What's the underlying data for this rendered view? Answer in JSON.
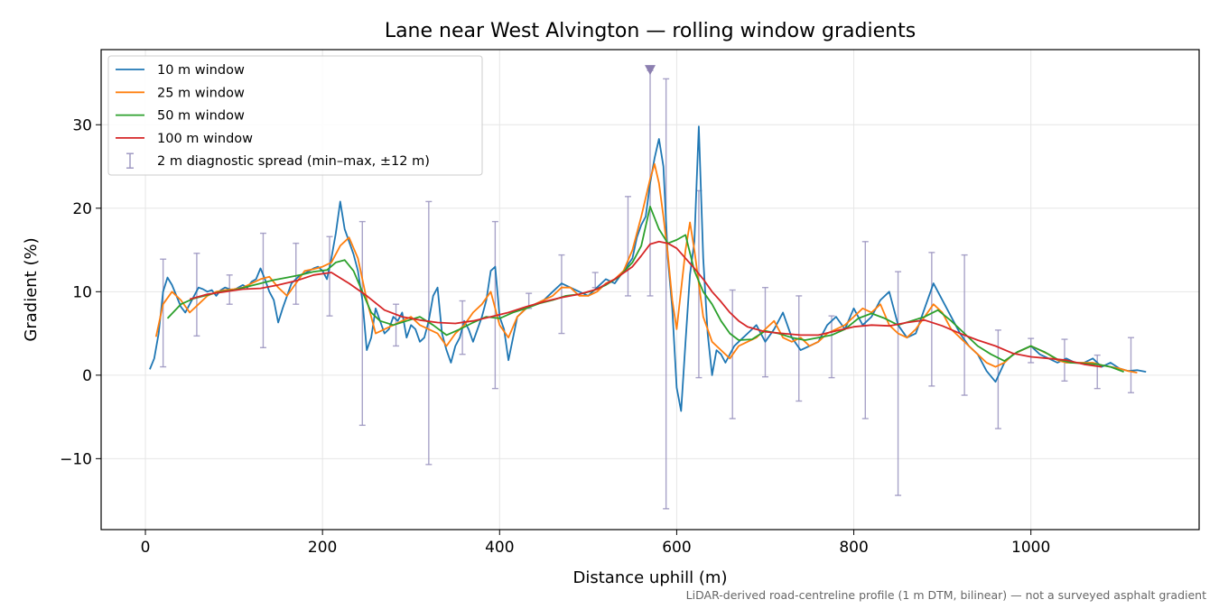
{
  "chart_data": {
    "type": "line",
    "title": "Lane near West Alvington — rolling window gradients",
    "xlabel": "Distance uphill (m)",
    "ylabel": "Gradient (%)",
    "xlim": [
      -50,
      1190
    ],
    "ylim": [
      -18.5,
      39
    ],
    "xticks": [
      0,
      200,
      400,
      600,
      800,
      1000
    ],
    "yticks": [
      -10,
      0,
      10,
      20,
      30
    ],
    "xtick_labels": [
      "0",
      "200",
      "400",
      "600",
      "800",
      "1000"
    ],
    "ytick_labels": [
      "−10",
      "0",
      "10",
      "20",
      "30"
    ],
    "grid": true,
    "legend_position": "upper-left",
    "footnote": "LiDAR-derived road-centreline profile (1 m DTM, bilinear) — not a surveyed asphalt gradient",
    "marker": {
      "x": 570,
      "y": 36.5,
      "shape": "downward-triangle",
      "color": "#8c7fb0"
    },
    "series": [
      {
        "name": "10 m window",
        "color": "#1f77b4",
        "x": [
          5,
          10,
          15,
          20,
          25,
          30,
          35,
          40,
          45,
          50,
          55,
          60,
          65,
          70,
          75,
          80,
          85,
          90,
          95,
          100,
          105,
          110,
          115,
          120,
          125,
          130,
          135,
          140,
          145,
          150,
          155,
          160,
          165,
          170,
          175,
          180,
          185,
          190,
          195,
          200,
          205,
          210,
          215,
          220,
          225,
          230,
          235,
          240,
          245,
          250,
          255,
          260,
          265,
          270,
          275,
          280,
          285,
          290,
          295,
          300,
          305,
          310,
          315,
          320,
          325,
          330,
          335,
          340,
          345,
          350,
          355,
          360,
          365,
          370,
          375,
          380,
          385,
          390,
          395,
          400,
          405,
          410,
          420,
          430,
          440,
          450,
          460,
          470,
          480,
          490,
          500,
          510,
          520,
          530,
          540,
          550,
          555,
          560,
          565,
          570,
          575,
          580,
          585,
          590,
          595,
          600,
          605,
          610,
          615,
          620,
          625,
          630,
          635,
          640,
          645,
          650,
          655,
          660,
          665,
          670,
          680,
          690,
          700,
          710,
          720,
          730,
          740,
          750,
          760,
          770,
          780,
          790,
          800,
          810,
          820,
          830,
          840,
          850,
          860,
          870,
          880,
          890,
          900,
          910,
          920,
          930,
          940,
          950,
          960,
          970,
          980,
          990,
          1000,
          1010,
          1020,
          1030,
          1040,
          1050,
          1060,
          1070,
          1080,
          1090,
          1100,
          1110,
          1120,
          1130
        ],
        "values": [
          0.7,
          2,
          5,
          10,
          11.7,
          10.8,
          9.5,
          8.2,
          7.5,
          8.5,
          9.5,
          10.5,
          10.3,
          10.0,
          10.2,
          9.5,
          10.2,
          10.5,
          10.3,
          10.2,
          10.5,
          10.8,
          10.5,
          11.2,
          11.5,
          12.8,
          11.5,
          10.0,
          9.0,
          6.3,
          8.0,
          9.5,
          11.0,
          11.5,
          12.0,
          12.2,
          12.5,
          12.8,
          13.0,
          12.5,
          11.5,
          14.0,
          17.0,
          20.8,
          17.5,
          16.0,
          14.5,
          12.5,
          9.0,
          3.0,
          4.5,
          8.0,
          6.5,
          5.0,
          5.5,
          7.0,
          6.5,
          7.5,
          4.5,
          6.0,
          5.5,
          4.0,
          4.5,
          6.5,
          9.5,
          10.5,
          5.0,
          3.0,
          1.5,
          3.5,
          4.5,
          6.5,
          5.5,
          4.0,
          5.5,
          7.0,
          9.0,
          12.5,
          13.0,
          7.0,
          5.5,
          1.8,
          7.0,
          8.0,
          8.5,
          9.0,
          10.0,
          11.0,
          10.5,
          10.0,
          9.5,
          10.5,
          11.5,
          11.0,
          12.5,
          14.0,
          16.5,
          18.0,
          19.0,
          23.0,
          26.0,
          28.3,
          25.0,
          14.0,
          8.0,
          -1.5,
          -4.3,
          4.0,
          12.0,
          16.0,
          29.8,
          14.0,
          5.0,
          0.0,
          3.0,
          2.5,
          1.5,
          2.5,
          3.5,
          4.0,
          5.0,
          6.0,
          4.0,
          5.5,
          7.5,
          4.5,
          3.0,
          3.5,
          4.0,
          6.0,
          7.0,
          5.5,
          8.0,
          6.0,
          7.0,
          9.0,
          10.0,
          6.0,
          4.5,
          5.0,
          8.0,
          11.0,
          9.0,
          7.0,
          5.0,
          3.5,
          2.5,
          0.5,
          -0.8,
          1.5,
          2.5,
          3.0,
          3.5,
          2.5,
          2.0,
          1.5,
          2.0,
          1.5,
          1.5,
          2.0,
          1.0,
          1.5,
          0.8,
          0.5,
          0.6,
          0.4
        ]
      },
      {
        "name": "25 m window",
        "color": "#ff7f0e",
        "x": [
          12,
          20,
          30,
          40,
          50,
          60,
          70,
          80,
          90,
          100,
          110,
          120,
          130,
          140,
          150,
          160,
          170,
          180,
          190,
          200,
          210,
          220,
          230,
          240,
          250,
          260,
          270,
          280,
          290,
          300,
          310,
          320,
          330,
          340,
          350,
          360,
          370,
          380,
          390,
          400,
          410,
          420,
          430,
          440,
          450,
          460,
          470,
          480,
          490,
          500,
          510,
          520,
          530,
          540,
          550,
          560,
          570,
          575,
          580,
          585,
          590,
          595,
          600,
          610,
          615,
          620,
          630,
          640,
          650,
          660,
          670,
          680,
          690,
          700,
          710,
          720,
          730,
          740,
          750,
          760,
          770,
          780,
          790,
          800,
          810,
          820,
          830,
          840,
          850,
          860,
          870,
          880,
          890,
          900,
          910,
          920,
          930,
          940,
          950,
          960,
          970,
          980,
          990,
          1000,
          1010,
          1020,
          1030,
          1040,
          1050,
          1060,
          1070,
          1080,
          1090,
          1100,
          1110,
          1120
        ],
        "values": [
          4.6,
          8.5,
          10.0,
          9.0,
          7.5,
          8.5,
          9.5,
          10.0,
          10.2,
          10.3,
          10.5,
          11.0,
          11.5,
          11.8,
          10.5,
          9.5,
          11.0,
          12.5,
          12.7,
          13.0,
          13.5,
          15.5,
          16.5,
          14.0,
          9.0,
          5.0,
          5.5,
          6.0,
          6.5,
          7.0,
          6.0,
          5.5,
          5.0,
          3.5,
          5.0,
          6.0,
          7.5,
          8.5,
          10.0,
          6.0,
          4.5,
          7.0,
          8.0,
          8.5,
          9.0,
          9.5,
          10.5,
          10.5,
          9.5,
          9.5,
          10.0,
          11.0,
          11.5,
          12.5,
          15.0,
          19.0,
          23.5,
          25.3,
          23.0,
          19.0,
          14.5,
          9.0,
          5.5,
          15.0,
          18.3,
          15.0,
          7.0,
          4.0,
          3.0,
          2.0,
          3.5,
          4.0,
          4.5,
          5.5,
          6.5,
          4.5,
          4.0,
          4.5,
          3.5,
          4.0,
          5.0,
          5.5,
          6.0,
          7.0,
          8.0,
          7.5,
          8.5,
          6.0,
          5.0,
          4.5,
          5.5,
          7.0,
          8.5,
          7.5,
          5.5,
          4.5,
          3.5,
          2.5,
          1.5,
          1.0,
          1.5,
          2.5,
          3.0,
          3.5,
          3.0,
          2.5,
          1.8,
          1.5,
          1.5,
          1.5,
          1.5,
          1.2,
          1.0,
          0.8,
          0.5,
          0.3
        ]
      },
      {
        "name": "50 m window",
        "color": "#2ca02c",
        "x": [
          25,
          40,
          55,
          70,
          85,
          100,
          115,
          130,
          145,
          160,
          175,
          190,
          205,
          215,
          225,
          235,
          245,
          255,
          265,
          280,
          295,
          310,
          325,
          340,
          355,
          370,
          385,
          400,
          415,
          430,
          445,
          460,
          475,
          490,
          505,
          520,
          535,
          550,
          560,
          570,
          580,
          590,
          600,
          610,
          620,
          630,
          640,
          650,
          660,
          670,
          685,
          700,
          715,
          730,
          745,
          760,
          775,
          790,
          805,
          820,
          835,
          850,
          865,
          880,
          895,
          910,
          925,
          940,
          955,
          970,
          985,
          1000,
          1015,
          1030,
          1045,
          1060,
          1075,
          1090,
          1105
        ],
        "values": [
          6.8,
          8.5,
          9.2,
          9.6,
          10.0,
          10.2,
          10.6,
          11.0,
          11.4,
          11.7,
          12.0,
          12.4,
          12.6,
          13.5,
          13.8,
          12.5,
          10.0,
          7.5,
          6.5,
          6.0,
          6.5,
          7.0,
          6.0,
          4.8,
          5.5,
          6.3,
          7.0,
          6.8,
          7.5,
          8.0,
          8.6,
          9.0,
          9.5,
          9.7,
          10.1,
          10.8,
          11.8,
          13.5,
          15.5,
          20.2,
          17.5,
          15.8,
          16.2,
          16.8,
          12.5,
          10.0,
          8.5,
          6.5,
          5.0,
          4.2,
          4.3,
          5.3,
          5.0,
          4.5,
          4.2,
          4.5,
          4.8,
          5.5,
          6.8,
          7.4,
          6.8,
          6.0,
          6.5,
          7.0,
          7.8,
          6.5,
          5.0,
          3.5,
          2.5,
          1.7,
          2.8,
          3.5,
          2.8,
          1.9,
          1.5,
          1.4,
          1.3,
          1.0,
          0.4
        ]
      },
      {
        "name": "100 m window",
        "color": "#d62728",
        "x": [
          50,
          70,
          90,
          110,
          130,
          150,
          170,
          190,
          210,
          230,
          250,
          270,
          290,
          310,
          330,
          350,
          370,
          390,
          410,
          430,
          450,
          470,
          490,
          510,
          530,
          550,
          560,
          570,
          580,
          590,
          600,
          610,
          620,
          630,
          640,
          650,
          660,
          670,
          680,
          700,
          720,
          740,
          760,
          780,
          800,
          820,
          840,
          860,
          880,
          900,
          920,
          940,
          960,
          980,
          1000,
          1020,
          1040,
          1060,
          1080
        ],
        "values": [
          9.1,
          9.7,
          10.0,
          10.3,
          10.4,
          10.8,
          11.3,
          12.0,
          12.3,
          11.0,
          9.5,
          7.8,
          7.0,
          6.6,
          6.3,
          6.2,
          6.5,
          7.0,
          7.5,
          8.2,
          8.8,
          9.3,
          9.7,
          10.3,
          11.5,
          13.0,
          14.3,
          15.7,
          16.0,
          15.8,
          15.2,
          14.0,
          12.8,
          11.5,
          10.0,
          8.8,
          7.5,
          6.5,
          5.8,
          5.2,
          5.0,
          4.8,
          4.8,
          5.3,
          5.8,
          6.0,
          5.9,
          6.3,
          6.6,
          5.9,
          5.0,
          4.2,
          3.5,
          2.6,
          2.2,
          2.0,
          1.8,
          1.3,
          1.0
        ]
      }
    ],
    "errorbars": {
      "name": "2 m diagnostic spread (min–max, ±12 m)",
      "color": "#9a93bf",
      "x": [
        20,
        58,
        95,
        133,
        170,
        208,
        245,
        283,
        320,
        358,
        395,
        433,
        470,
        508,
        545,
        570,
        588,
        625,
        663,
        700,
        738,
        775,
        813,
        850,
        888,
        925,
        963,
        1000,
        1038,
        1075,
        1113
      ],
      "low": [
        1.0,
        4.7,
        8.5,
        3.3,
        8.5,
        7.1,
        -6.0,
        3.5,
        -10.7,
        2.5,
        -1.6,
        8.0,
        5.0,
        10.5,
        9.5,
        9.5,
        -16.0,
        -0.3,
        -5.2,
        -0.2,
        -3.1,
        -0.3,
        -5.2,
        -14.4,
        -1.3,
        -2.4,
        -6.4,
        1.5,
        -0.7,
        -1.6,
        -2.1
      ],
      "high": [
        13.9,
        14.6,
        12.0,
        17.0,
        15.8,
        16.6,
        18.4,
        8.5,
        20.8,
        8.9,
        18.4,
        9.8,
        14.4,
        12.3,
        21.4,
        36.5,
        35.5,
        22.1,
        10.2,
        10.5,
        9.5,
        7.1,
        16.0,
        12.4,
        14.7,
        14.4,
        5.4,
        4.4,
        4.3,
        2.4,
        4.5
      ]
    }
  }
}
